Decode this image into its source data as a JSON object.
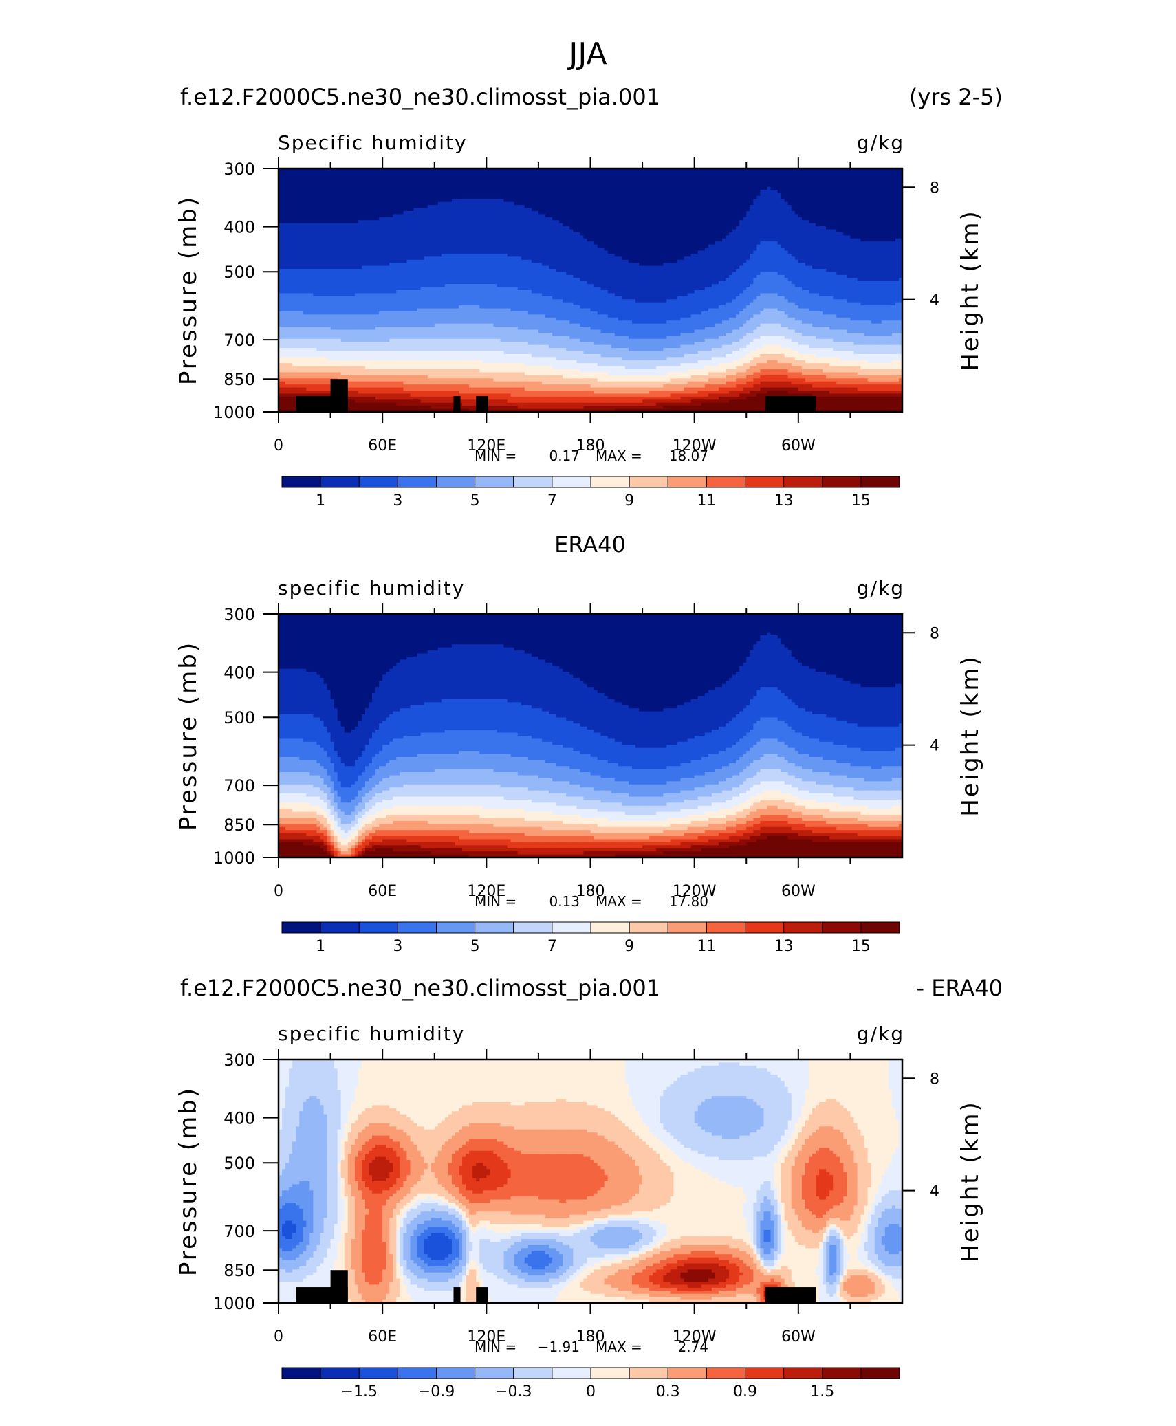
{
  "figure_title": "JJA",
  "colors": {
    "abs_scale": [
      "#00137f",
      "#0a2eb4",
      "#1b52dc",
      "#3a74ed",
      "#6698f3",
      "#95b8f8",
      "#c2d6fb",
      "#e7efff",
      "#fff0de",
      "#fdc9a8",
      "#fa9c74",
      "#f4653f",
      "#e3381a",
      "#bd1d0b",
      "#8c0a04",
      "#6e0502"
    ],
    "diff_scale": [
      "#00137f",
      "#0a2eb4",
      "#1b52dc",
      "#3a74ed",
      "#6698f3",
      "#95b8f8",
      "#c2d6fb",
      "#e7efff",
      "#fff0de",
      "#fdc9a8",
      "#fa9c74",
      "#f4653f",
      "#e3381a",
      "#bd1d0b",
      "#8c0a04",
      "#6e0502"
    ],
    "topography": "#000000"
  },
  "panels": [
    {
      "heading_left": "f.e12.F2000C5.ne30_ne30.climosst_pia.001",
      "heading_center": "",
      "heading_right": "(yrs 2-5)",
      "variable": "Specific humidity",
      "units": "g/kg",
      "stats": {
        "min_label": "MIN =",
        "min": "0.17",
        "max_label": "MAX =",
        "max": "18.07"
      },
      "colorbar_labels": [
        "1",
        "3",
        "5",
        "7",
        "9",
        "11",
        "13",
        "15"
      ]
    },
    {
      "heading_left": "",
      "heading_center": "ERA40",
      "heading_right": "",
      "variable": "specific humidity",
      "units": "g/kg",
      "stats": {
        "min_label": "MIN =",
        "min": "0.13",
        "max_label": "MAX =",
        "max": "17.80"
      },
      "colorbar_labels": [
        "1",
        "3",
        "5",
        "7",
        "9",
        "11",
        "13",
        "15"
      ]
    },
    {
      "heading_left": "f.e12.F2000C5.ne30_ne30.climosst_pia.001",
      "heading_center": "",
      "heading_right": "- ERA40",
      "variable": "specific humidity",
      "units": "g/kg",
      "stats": {
        "min_label": "MIN =",
        "min": "−1.91",
        "max_label": "MAX =",
        "max": "2.74"
      },
      "colorbar_labels": [
        "−1.5",
        "−0.9",
        "−0.3",
        "0",
        "0.3",
        "0.9",
        "1.5"
      ]
    }
  ],
  "axes": {
    "y_left_label": "Pressure (mb)",
    "y_right_label": "Height (km)",
    "pressure_ticks": [
      "300",
      "400",
      "500",
      "700",
      "850",
      "1000"
    ],
    "height_ticks": [
      "8",
      "4"
    ],
    "x_ticks": [
      "0",
      "60E",
      "120E",
      "180",
      "120W",
      "60W"
    ]
  },
  "chart_data": [
    {
      "type": "heatmap",
      "title": "Specific humidity",
      "units": "g/kg",
      "xlim": [
        0,
        360
      ],
      "ylim": [
        1000,
        300
      ],
      "x_ticks": [
        "0",
        "60E",
        "120E",
        "180",
        "120W",
        "60W"
      ],
      "y_ticks": [
        300,
        400,
        500,
        700,
        850,
        1000
      ],
      "y2_ticks": [
        8,
        4
      ],
      "levels": [
        1,
        2,
        3,
        4,
        5,
        6,
        7,
        8,
        9,
        10,
        11,
        12,
        13,
        14,
        15
      ],
      "min": 0.17,
      "max": 18.07
    },
    {
      "type": "heatmap",
      "title": "specific humidity",
      "units": "g/kg",
      "xlim": [
        0,
        360
      ],
      "ylim": [
        1000,
        300
      ],
      "x_ticks": [
        "0",
        "60E",
        "120E",
        "180",
        "120W",
        "60W"
      ],
      "y_ticks": [
        300,
        400,
        500,
        700,
        850,
        1000
      ],
      "y2_ticks": [
        8,
        4
      ],
      "levels": [
        1,
        2,
        3,
        4,
        5,
        6,
        7,
        8,
        9,
        10,
        11,
        12,
        13,
        14,
        15
      ],
      "min": 0.13,
      "max": 17.8
    },
    {
      "type": "heatmap",
      "title": "specific humidity",
      "units": "g/kg",
      "xlim": [
        0,
        360
      ],
      "ylim": [
        1000,
        300
      ],
      "x_ticks": [
        "0",
        "60E",
        "120E",
        "180",
        "120W",
        "60W"
      ],
      "y_ticks": [
        300,
        400,
        500,
        700,
        850,
        1000
      ],
      "y2_ticks": [
        8,
        4
      ],
      "levels": [
        -1.5,
        -0.9,
        -0.3,
        0,
        0.3,
        0.9,
        1.5
      ],
      "min": -1.91,
      "max": 2.74
    }
  ]
}
